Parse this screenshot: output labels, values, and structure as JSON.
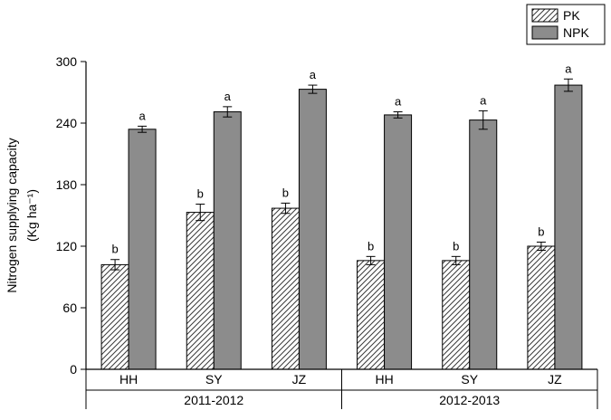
{
  "figure": {
    "background": "#ffffff"
  },
  "chart_data": {
    "type": "bar",
    "title": "",
    "xlabel": "",
    "ylabel_line1": "Nitrogen supplying capacity",
    "ylabel_line2": "(Kg ha⁻¹)",
    "ylim": [
      0,
      300
    ],
    "yticks": [
      0,
      60,
      120,
      180,
      240,
      300
    ],
    "grid": false,
    "legend_position": "top-right",
    "groups": [
      {
        "label": "2011-2012",
        "categories": [
          "HH",
          "SY",
          "JZ"
        ]
      },
      {
        "label": "2012-2013",
        "categories": [
          "HH",
          "SY",
          "JZ"
        ]
      }
    ],
    "series": [
      {
        "name": "PK",
        "style": "hatched",
        "color": "#ffffff",
        "hatch_color": "#3a3a3a",
        "values": [
          102,
          153,
          157,
          106,
          106,
          120
        ],
        "errors": [
          5,
          8,
          5,
          4,
          4,
          4
        ],
        "letters": [
          "b",
          "b",
          "b",
          "b",
          "b",
          "b"
        ]
      },
      {
        "name": "NPK",
        "style": "solid",
        "color": "#8c8c8c",
        "hatch_color": "#000000",
        "values": [
          234,
          251,
          273,
          248,
          243,
          277
        ],
        "errors": [
          3,
          5,
          4,
          3,
          9,
          6
        ],
        "letters": [
          "a",
          "a",
          "a",
          "a",
          "a",
          "a"
        ]
      }
    ]
  }
}
